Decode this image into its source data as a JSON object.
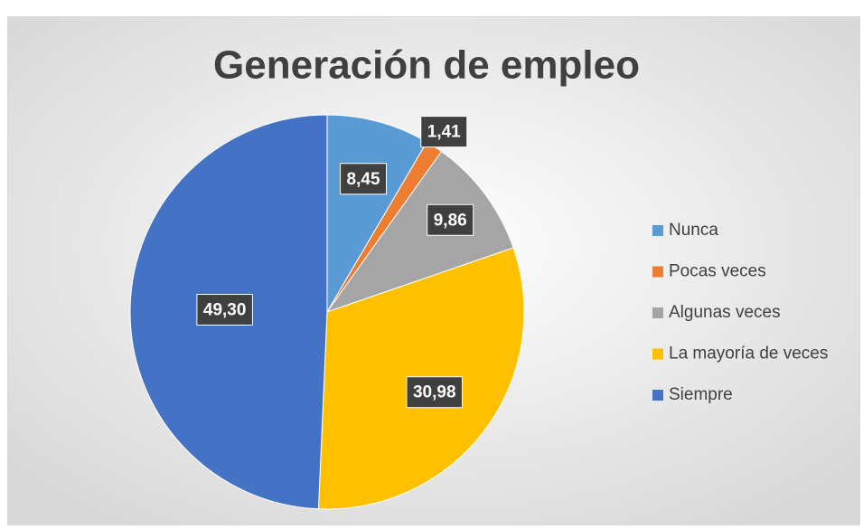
{
  "chart_data": {
    "type": "pie",
    "title": "Generación de empleo",
    "categories": [
      "Nunca",
      "Pocas veces",
      "Algunas veces",
      "La mayoría de veces",
      "Siempre"
    ],
    "values": [
      8.45,
      1.41,
      9.86,
      30.98,
      49.3
    ],
    "value_labels": [
      "8,45",
      "1,41",
      "9,86",
      "30,98",
      "49,30"
    ],
    "colors": [
      "#5b9bd5",
      "#ed7d31",
      "#a5a5a5",
      "#ffc000",
      "#4472c4"
    ],
    "legend": "right"
  }
}
